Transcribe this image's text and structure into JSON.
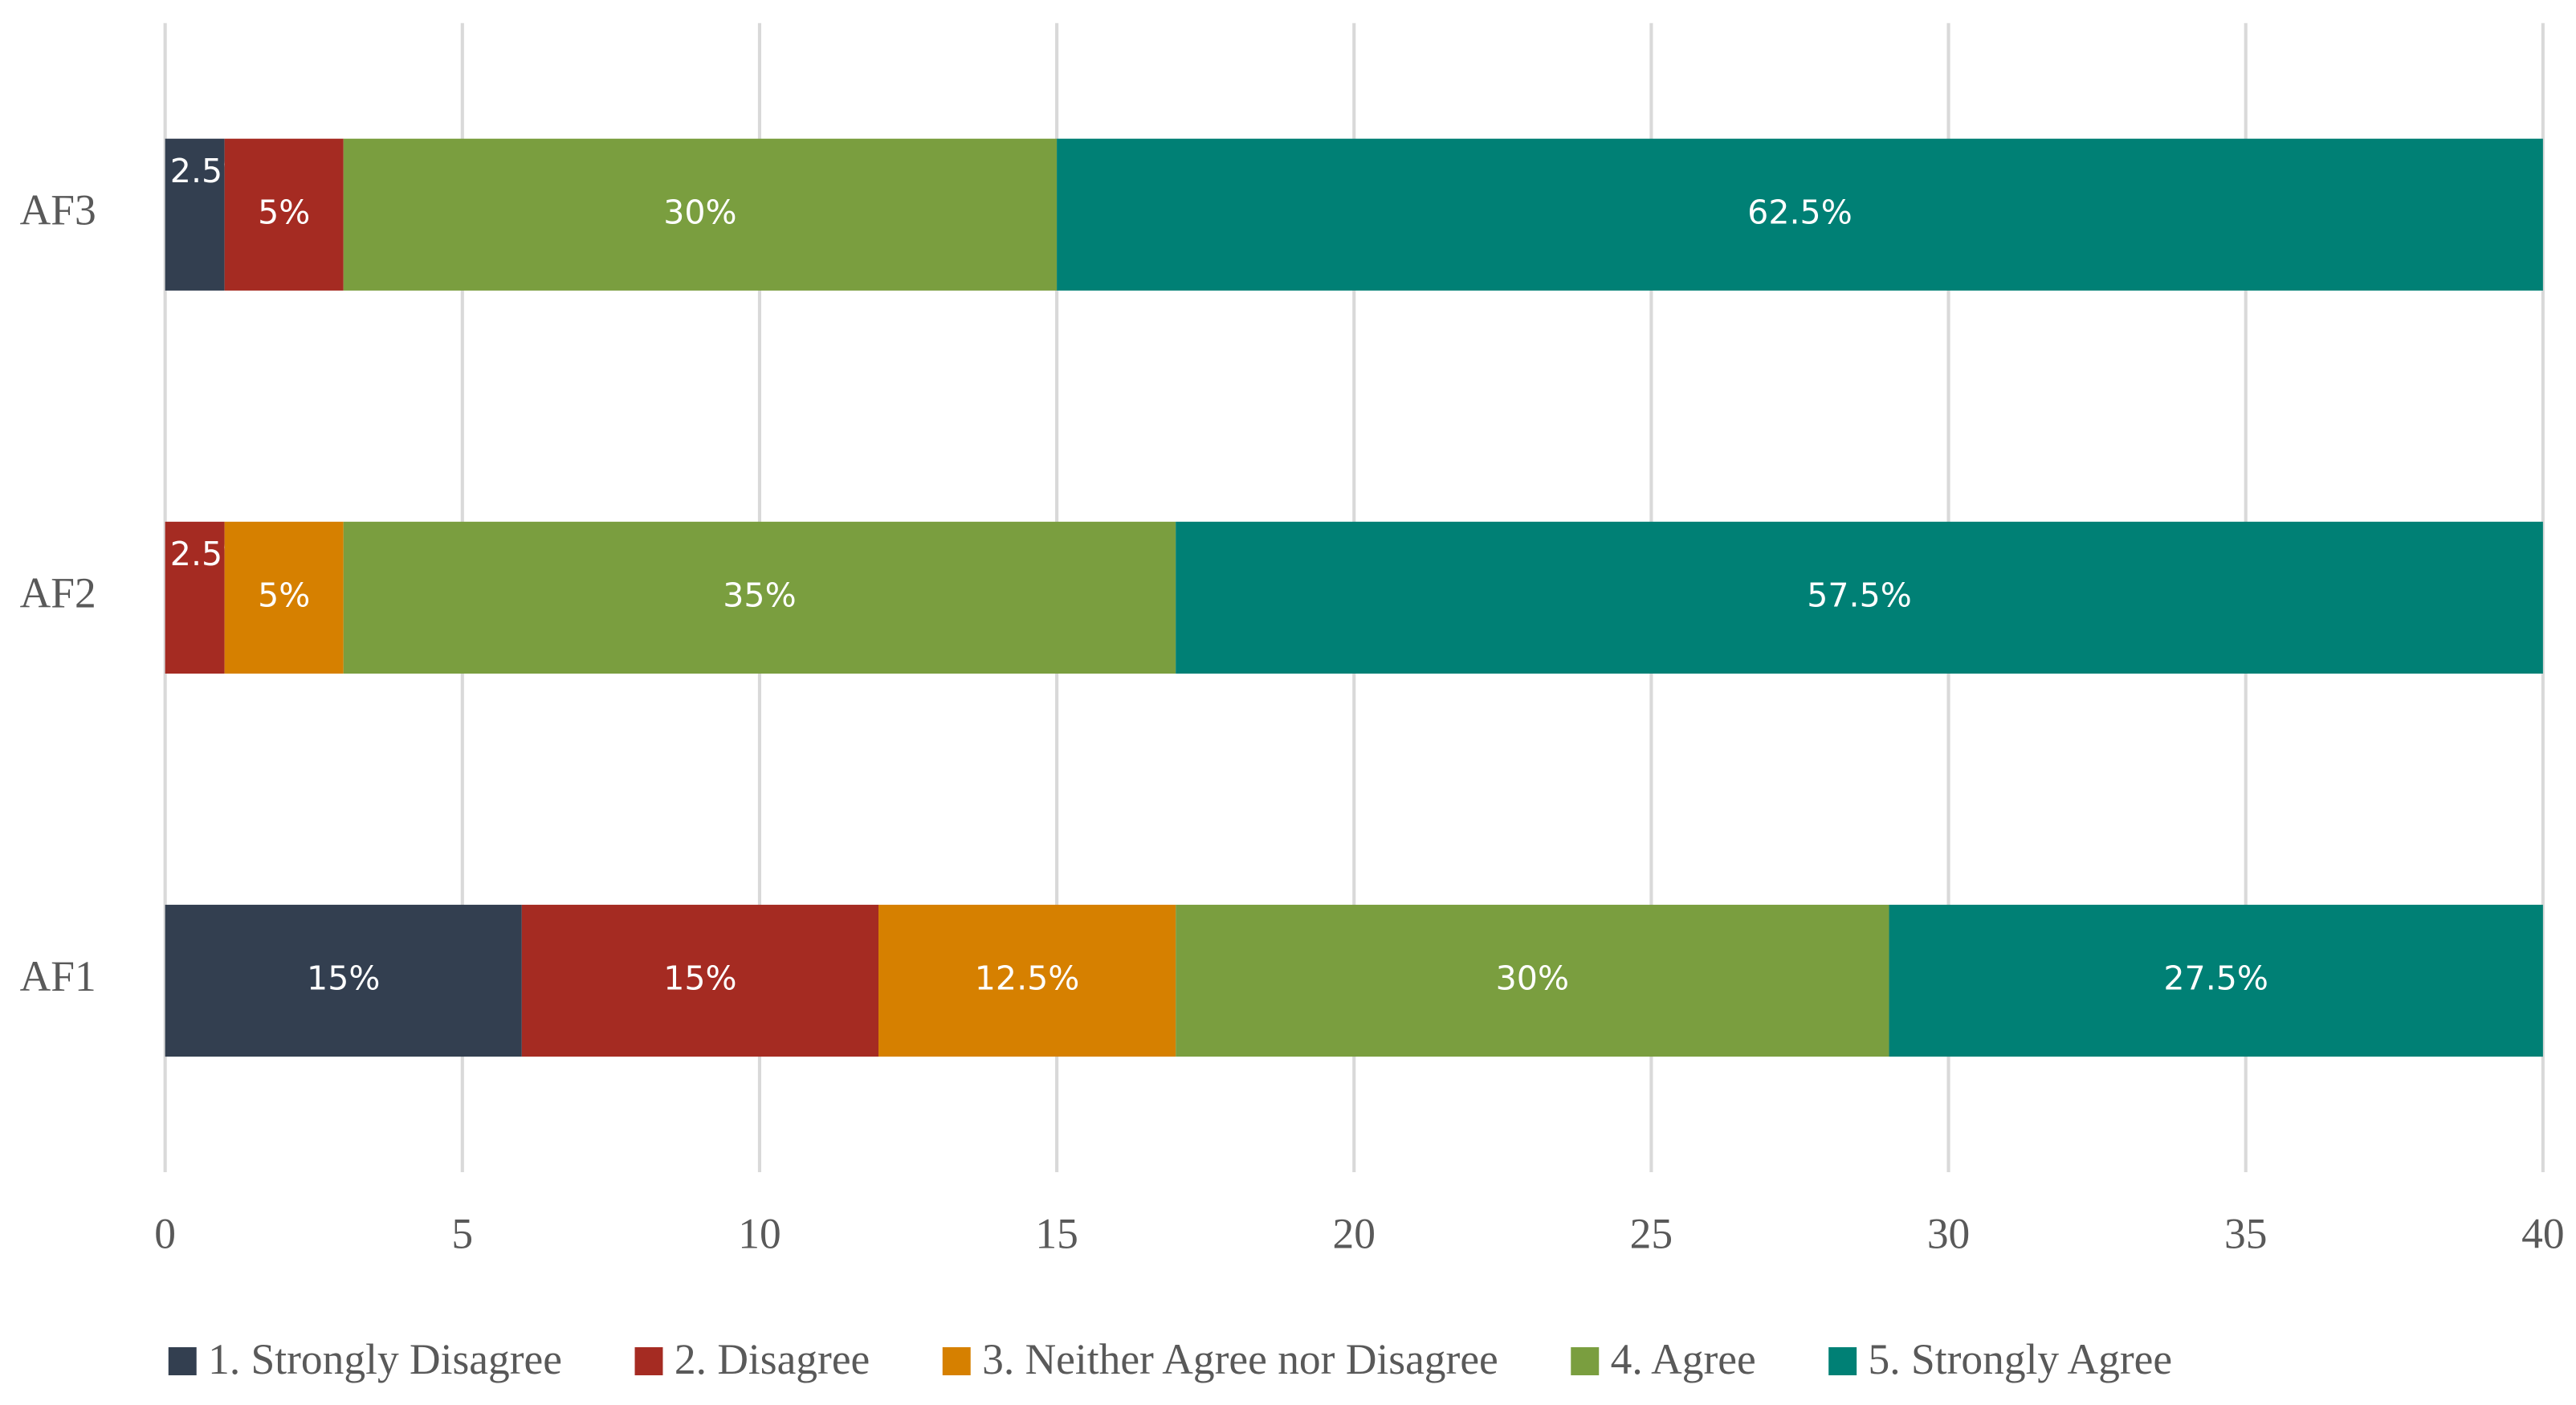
{
  "chart_data": {
    "type": "stacked-bar-horizontal",
    "categories": [
      "AF1",
      "AF2",
      "AF3"
    ],
    "series": [
      {
        "name": "1. Strongly Disagree",
        "color": "#333f50",
        "values": [
          6,
          null,
          1
        ],
        "value_labels": [
          "15%",
          null,
          "2.5%"
        ]
      },
      {
        "name": "2. Disagree",
        "color": "#a52b22",
        "values": [
          6,
          1,
          2
        ],
        "value_labels": [
          "15%",
          "2.5%",
          "5%"
        ]
      },
      {
        "name": "3. Neither Agree nor Disagree",
        "color": "#d68000",
        "values": [
          5,
          2,
          null
        ],
        "value_labels": [
          "12.5%",
          "5%",
          null
        ]
      },
      {
        "name": "4. Agree",
        "color": "#7a9e3f",
        "values": [
          12,
          14,
          12
        ],
        "value_labels": [
          "30%",
          "35%",
          "30%"
        ]
      },
      {
        "name": "5. Strongly Agree",
        "color": "#008075",
        "values": [
          11,
          23,
          25
        ],
        "value_labels": [
          "27.5%",
          "57.5%",
          "62.5%"
        ]
      }
    ],
    "xlim": [
      0,
      40
    ],
    "xticks": [
      0,
      5,
      10,
      15,
      20,
      25,
      30,
      35,
      40
    ],
    "grid": true,
    "legend": "bottom"
  }
}
